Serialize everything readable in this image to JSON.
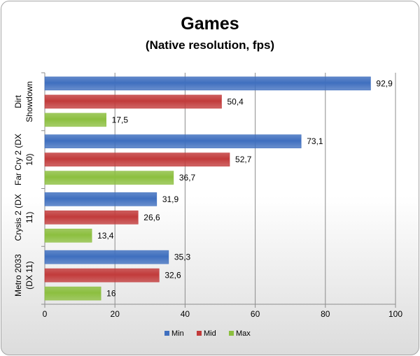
{
  "chart_data": {
    "type": "bar",
    "orientation": "horizontal",
    "title": "Games",
    "subtitle": "(Native resolution, fps)",
    "categories": [
      [
        "Dirt",
        "Showdown"
      ],
      [
        "Far Cry 2 (DX",
        "10)"
      ],
      [
        "Crysis 2 (DX",
        "11)"
      ],
      [
        "Metro 2033",
        "(DX 11)"
      ]
    ],
    "series": [
      {
        "name": "Min",
        "color": "#3f6fbf",
        "values": [
          92.9,
          73.1,
          31.9,
          35.3
        ],
        "labels": [
          "92,9",
          "73,1",
          "31,9",
          "35,3"
        ]
      },
      {
        "name": "Mid",
        "color": "#c23b3b",
        "values": [
          50.4,
          52.7,
          26.6,
          32.6
        ],
        "labels": [
          "50,4",
          "52,7",
          "26,6",
          "32,6"
        ]
      },
      {
        "name": "Max",
        "color": "#8cbf3f",
        "values": [
          17.5,
          36.7,
          13.4,
          16
        ],
        "labels": [
          "17,5",
          "36,7",
          "13,4",
          "16"
        ]
      }
    ],
    "xlim": [
      0,
      100
    ],
    "xticks": [
      0,
      20,
      40,
      60,
      80,
      100
    ],
    "grid": true,
    "legend": "bottom"
  }
}
